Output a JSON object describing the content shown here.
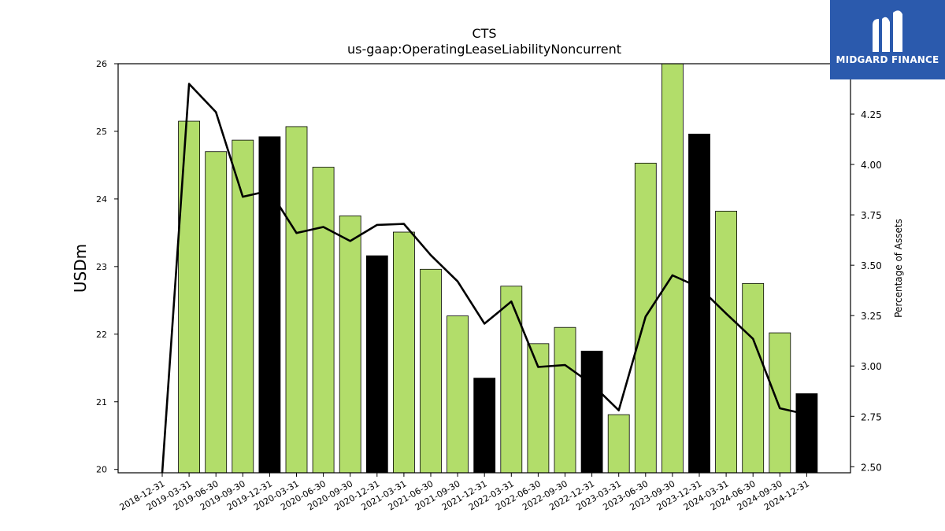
{
  "logo": {
    "text": "MIDGARD FINANCE",
    "background": "#2b5aad"
  },
  "chart_data": {
    "type": "bar",
    "title": "CTS",
    "subtitle": "us-gaap:OperatingLeaseLiabilityNoncurrent",
    "ylabel": "USDm",
    "y2label": "Percentage of Assets",
    "ylim": [
      19.95,
      26.0
    ],
    "y2lim": [
      2.47,
      4.5
    ],
    "yticks": [
      "20",
      "21",
      "22",
      "23",
      "24",
      "25",
      "26"
    ],
    "y2ticks": [
      "2.50",
      "2.75",
      "3.00",
      "3.25",
      "3.50",
      "3.75",
      "4.00",
      "4.25"
    ],
    "categories": [
      "2018-12-31",
      "2019-03-31",
      "2019-06-30",
      "2019-09-30",
      "2019-12-31",
      "2020-03-31",
      "2020-06-30",
      "2020-09-30",
      "2020-12-31",
      "2021-03-31",
      "2021-06-30",
      "2021-09-30",
      "2021-12-31",
      "2022-03-31",
      "2022-06-30",
      "2022-09-30",
      "2022-12-31",
      "2023-03-31",
      "2023-06-30",
      "2023-09-30",
      "2023-12-31",
      "2024-03-31",
      "2024-06-30",
      "2024-09-30",
      "2024-12-31"
    ],
    "series": [
      {
        "kind": "bar",
        "values": [
          null,
          25.15,
          24.7,
          24.87,
          24.92,
          25.07,
          24.47,
          23.75,
          23.16,
          23.51,
          22.96,
          22.27,
          21.35,
          22.71,
          21.86,
          22.1,
          21.75,
          20.81,
          24.53,
          26.0,
          24.96,
          23.82,
          22.75,
          22.02,
          21.12
        ],
        "colors": [
          "#b2dd6a",
          "#000000"
        ],
        "highlight": [
          false,
          false,
          false,
          false,
          true,
          false,
          false,
          false,
          true,
          false,
          false,
          false,
          true,
          false,
          false,
          false,
          true,
          false,
          false,
          false,
          true,
          false,
          false,
          false,
          true
        ]
      },
      {
        "kind": "line",
        "axis": "right",
        "color": "#000000",
        "values": [
          2.45,
          4.4,
          4.26,
          3.84,
          3.87,
          3.66,
          3.69,
          3.62,
          3.7,
          3.705,
          3.55,
          3.42,
          3.21,
          3.32,
          2.995,
          3.005,
          2.91,
          2.78,
          3.245,
          3.45,
          3.39,
          3.26,
          3.135,
          2.79,
          2.76
        ]
      }
    ]
  }
}
